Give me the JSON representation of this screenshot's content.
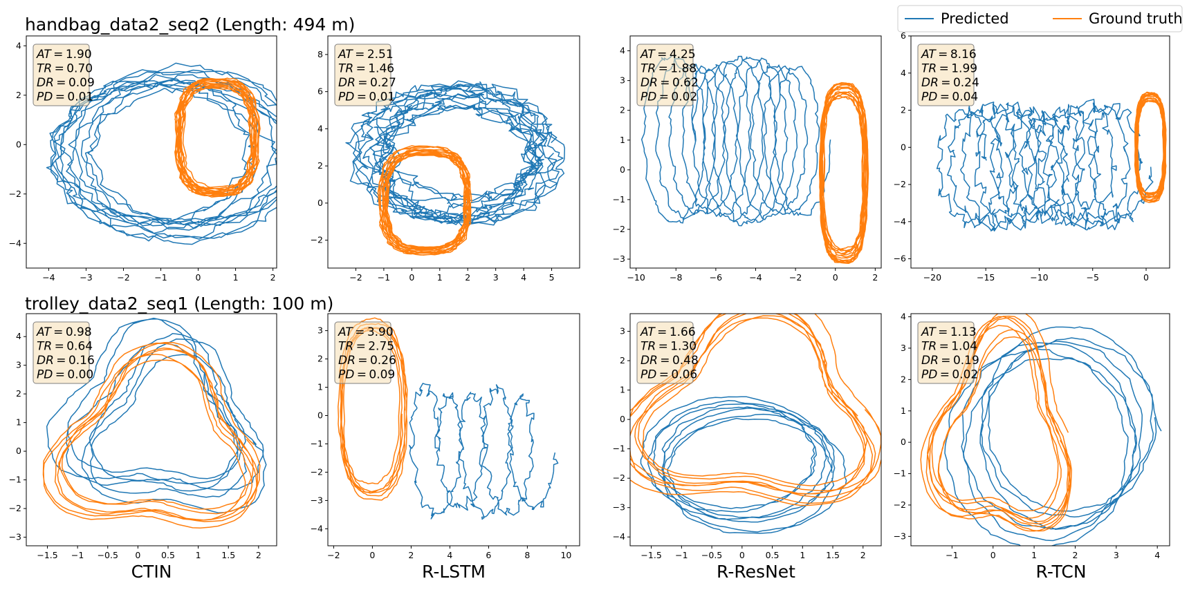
{
  "legend": {
    "items": [
      {
        "label": "Predicted",
        "color": "#1f77b4"
      },
      {
        "label": "Ground truth",
        "color": "#ff7f0e"
      }
    ]
  },
  "rows": [
    {
      "title": "handbag_data2_seq2 (Length: 494 m)"
    },
    {
      "title": "trolley_data2_seq1 (Length: 100 m)"
    }
  ],
  "methods": [
    "CTIN",
    "R-LSTM",
    "R-ResNet",
    "R-TCN"
  ],
  "chart_data": [
    {
      "type": "line",
      "row": 0,
      "method": "CTIN",
      "metrics": {
        "AT": "1.90",
        "TR": "0.70",
        "DR": "0.09",
        "PD": "0.01"
      },
      "xlim": [
        -4.6,
        2.1
      ],
      "ylim": [
        -5.0,
        4.4
      ],
      "xticks": [
        -4,
        -3,
        -2,
        -1,
        0,
        1,
        2
      ],
      "yticks": [
        -4,
        -2,
        0,
        2,
        4
      ],
      "series": [
        {
          "name": "Predicted",
          "shape": {
            "cx": -0.7,
            "cy": -0.4,
            "rx": 2.8,
            "ry": 3.0,
            "loops": 11,
            "drift": [
              0.6,
              0.3
            ],
            "noise": 0.18
          }
        },
        {
          "name": "Ground truth",
          "shape": {
            "cx": 0.5,
            "cy": 0.3,
            "rx": 1.0,
            "ry": 2.2,
            "loops": 14,
            "drift": [
              0.05,
              0.05
            ],
            "noise": 0.05,
            "sq": 0.5
          }
        }
      ]
    },
    {
      "type": "line",
      "row": 0,
      "method": "R-LSTM",
      "metrics": {
        "AT": "2.51",
        "TR": "1.46",
        "DR": "0.27",
        "PD": "0.01"
      },
      "xlim": [
        -3.0,
        6.0
      ],
      "ylim": [
        -3.5,
        9.0
      ],
      "xticks": [
        -2,
        -1,
        0,
        1,
        2,
        3,
        4,
        5
      ],
      "yticks": [
        -2,
        0,
        2,
        4,
        6,
        8
      ],
      "series": [
        {
          "name": "Predicted",
          "shape": {
            "cx": 1.6,
            "cy": 2.7,
            "rx": 3.0,
            "ry": 3.2,
            "loops": 13,
            "drift": [
              0.5,
              0.6
            ],
            "noise": 0.35
          }
        },
        {
          "name": "Ground truth",
          "shape": {
            "cx": 0.5,
            "cy": 0.1,
            "rx": 1.5,
            "ry": 2.7,
            "loops": 15,
            "drift": [
              0.05,
              0.05
            ],
            "noise": 0.06,
            "sq": 0.5
          }
        }
      ]
    },
    {
      "type": "line",
      "row": 0,
      "method": "R-ResNet",
      "metrics": {
        "AT": "4.25",
        "TR": "1.88",
        "DR": "0.62",
        "PD": "0.02"
      },
      "xlim": [
        -10.3,
        2.3
      ],
      "ylim": [
        -3.3,
        4.5
      ],
      "xticks": [
        -10,
        -8,
        -6,
        -4,
        -2,
        0,
        2
      ],
      "yticks": [
        -3,
        -2,
        -1,
        0,
        1,
        2,
        3,
        4
      ],
      "series": [
        {
          "name": "Predicted",
          "shape": {
            "cx": -5.3,
            "cy": 1.0,
            "rx": 1.3,
            "ry": 2.6,
            "loops": 12,
            "sweep": [
              -8.5,
              -1.5
            ],
            "noise": 0.12
          }
        },
        {
          "name": "Ground truth",
          "shape": {
            "cx": 0.4,
            "cy": -0.1,
            "rx": 1.1,
            "ry": 2.8,
            "loops": 14,
            "drift": [
              0.05,
              0.05
            ],
            "noise": 0.05,
            "sq": 0.5
          }
        }
      ]
    },
    {
      "type": "line",
      "row": 0,
      "method": "R-TCN",
      "metrics": {
        "AT": "8.16",
        "TR": "1.99",
        "DR": "0.24",
        "PD": "0.04"
      },
      "xlim": [
        -22.0,
        2.2
      ],
      "ylim": [
        -6.5,
        6.0
      ],
      "xticks": [
        -20,
        -15,
        -10,
        -5,
        0
      ],
      "yticks": [
        -6,
        -4,
        -2,
        0,
        2,
        4,
        6
      ],
      "series": [
        {
          "name": "Predicted",
          "shape": {
            "cx": -10.0,
            "cy": -1.0,
            "rx": 2.6,
            "ry": 3.0,
            "loops": 12,
            "sweep": [
              -17.5,
              -2.0
            ],
            "noise": 0.45
          }
        },
        {
          "name": "Ground truth",
          "shape": {
            "cx": 0.4,
            "cy": 0.0,
            "rx": 1.3,
            "ry": 2.7,
            "loops": 14,
            "drift": [
              0.05,
              0.05
            ],
            "noise": 0.05,
            "sq": 0.5
          }
        }
      ]
    },
    {
      "type": "line",
      "row": 1,
      "method": "CTIN",
      "metrics": {
        "AT": "0.98",
        "TR": "0.64",
        "DR": "0.16",
        "PD": "0.00"
      },
      "xlim": [
        -1.85,
        2.3
      ],
      "ylim": [
        -3.3,
        4.8
      ],
      "xticks": [
        -1.5,
        -1.0,
        -0.5,
        0.0,
        0.5,
        1.0,
        1.5,
        2.0
      ],
      "yticks": [
        -3,
        -2,
        -1,
        0,
        1,
        2,
        3,
        4
      ],
      "series": [
        {
          "name": "Predicted",
          "shape": {
            "cx": 0.4,
            "cy": 0.8,
            "rx": 1.3,
            "ry": 2.6,
            "loops": 6,
            "drift": [
              0.3,
              0.6
            ],
            "noise": 0.05,
            "tri": true
          }
        },
        {
          "name": "Ground truth",
          "shape": {
            "cx": 0.3,
            "cy": 0.2,
            "rx": 1.5,
            "ry": 2.8,
            "loops": 6,
            "drift": [
              0.1,
              0.2
            ],
            "noise": 0.03,
            "tri": true
          }
        }
      ]
    },
    {
      "type": "line",
      "row": 1,
      "method": "R-LSTM",
      "metrics": {
        "AT": "3.90",
        "TR": "2.75",
        "DR": "0.26",
        "PD": "0.09"
      },
      "xlim": [
        -2.3,
        10.7
      ],
      "ylim": [
        -4.6,
        3.6
      ],
      "xticks": [
        -2,
        0,
        2,
        4,
        6,
        8,
        10
      ],
      "yticks": [
        -4,
        -3,
        -2,
        -1,
        0,
        1,
        2,
        3
      ],
      "series": [
        {
          "name": "Predicted",
          "shape": {
            "cx": 5.5,
            "cy": -1.3,
            "rx": 0.9,
            "ry": 2.1,
            "loops": 5,
            "sweep": [
              2.4,
              8.6
            ],
            "noise": 0.2
          }
        },
        {
          "name": "Ground truth",
          "shape": {
            "cx": 0.0,
            "cy": 0.2,
            "rx": 1.6,
            "ry": 2.9,
            "loops": 6,
            "drift": [
              0.1,
              0.1
            ],
            "noise": 0.05,
            "sq": 0.3
          }
        }
      ]
    },
    {
      "type": "line",
      "row": 1,
      "method": "R-ResNet",
      "metrics": {
        "AT": "1.66",
        "TR": "1.30",
        "DR": "0.48",
        "PD": "0.06"
      },
      "xlim": [
        -1.85,
        2.3
      ],
      "ylim": [
        -4.3,
        3.6
      ],
      "xticks": [
        -1.5,
        -1.0,
        -0.5,
        0.0,
        0.5,
        1.0,
        1.5,
        2.0
      ],
      "yticks": [
        -4,
        -3,
        -2,
        -1,
        0,
        1,
        2,
        3
      ],
      "series": [
        {
          "name": "Predicted",
          "shape": {
            "cx": 0.0,
            "cy": -1.6,
            "rx": 1.4,
            "ry": 1.9,
            "loops": 7,
            "drift": [
              0.2,
              0.4
            ],
            "noise": 0.04
          }
        },
        {
          "name": "Ground truth",
          "shape": {
            "cx": 0.2,
            "cy": 0.2,
            "rx": 1.8,
            "ry": 3.0,
            "loops": 7,
            "drift": [
              0.1,
              0.2
            ],
            "noise": 0.03,
            "tri": true
          }
        }
      ]
    },
    {
      "type": "line",
      "row": 1,
      "method": "R-TCN",
      "metrics": {
        "AT": "1.13",
        "TR": "1.04",
        "DR": "0.19",
        "PD": "0.02"
      },
      "xlim": [
        -2.0,
        4.3
      ],
      "ylim": [
        -3.3,
        4.1
      ],
      "xticks": [
        -1,
        0,
        1,
        2,
        3,
        4
      ],
      "yticks": [
        -3,
        -2,
        -1,
        0,
        1,
        2,
        3,
        4
      ],
      "series": [
        {
          "name": "Predicted",
          "shape": {
            "cx": 1.5,
            "cy": 0.3,
            "rx": 2.1,
            "ry": 3.0,
            "loops": 6,
            "drift": [
              0.4,
              0.5
            ],
            "noise": 0.07
          }
        },
        {
          "name": "Ground truth",
          "shape": {
            "cx": 0.2,
            "cy": 0.2,
            "rx": 1.5,
            "ry": 3.0,
            "loops": 7,
            "drift": [
              0.15,
              0.2
            ],
            "noise": 0.03,
            "tri": true
          }
        }
      ]
    }
  ]
}
